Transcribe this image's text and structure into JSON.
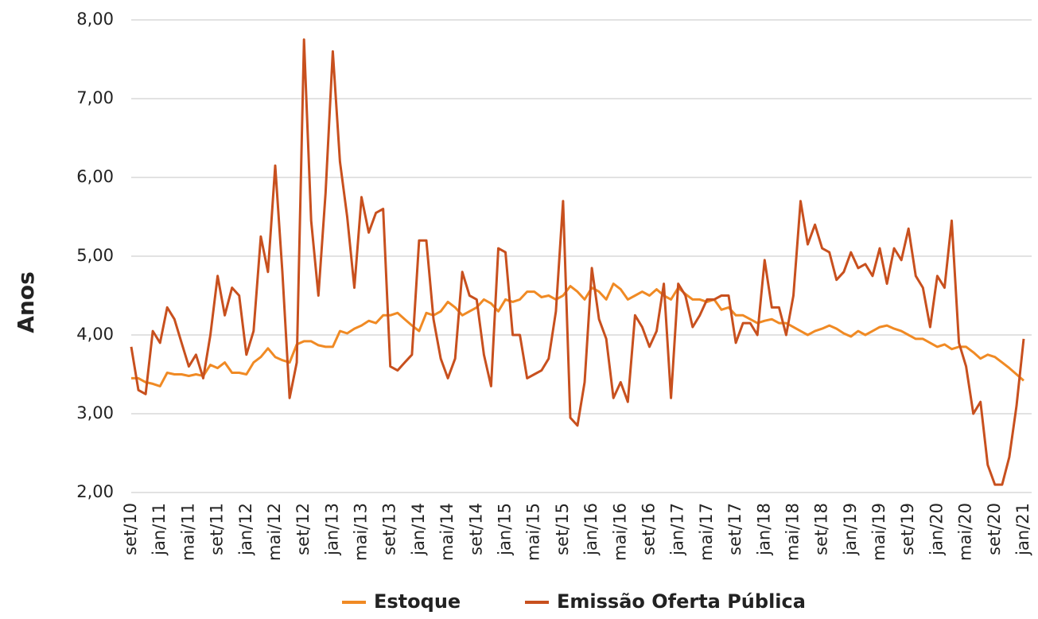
{
  "chart_data": {
    "type": "line",
    "y_label": "Anos",
    "categories": [
      "set/10",
      null,
      null,
      null,
      "jan/11",
      null,
      null,
      null,
      "mai/11",
      null,
      null,
      null,
      "set/11",
      null,
      null,
      null,
      "jan/12",
      null,
      null,
      null,
      "mai/12",
      null,
      null,
      null,
      "set/12",
      null,
      null,
      null,
      "jan/13",
      null,
      null,
      null,
      "mai/13",
      null,
      null,
      null,
      "set/13",
      null,
      null,
      null,
      "jan/14",
      null,
      null,
      null,
      "mai/14",
      null,
      null,
      null,
      "set/14",
      null,
      null,
      null,
      "jan/15",
      null,
      null,
      null,
      "mai/15",
      null,
      null,
      null,
      "set/15",
      null,
      null,
      null,
      "jan/16",
      null,
      null,
      null,
      "mai/16",
      null,
      null,
      null,
      "set/16",
      null,
      null,
      null,
      "jan/17",
      null,
      null,
      null,
      "mai/17",
      null,
      null,
      null,
      "set/17",
      null,
      null,
      null,
      "jan/18",
      null,
      null,
      null,
      "mai/18",
      null,
      null,
      null,
      "set/18",
      null,
      null,
      null,
      "jan/19",
      null,
      null,
      null,
      "mai/19",
      null,
      null,
      null,
      "set/19",
      null,
      null,
      null,
      "jan/20",
      null,
      null,
      null,
      "mai/20",
      null,
      null,
      null,
      "set/20",
      null,
      null,
      null,
      "jan/21"
    ],
    "series": [
      {
        "name": "Estoque",
        "color": "#f08a24",
        "values": [
          3.45,
          3.45,
          3.4,
          3.38,
          3.35,
          3.52,
          3.5,
          3.5,
          3.48,
          3.5,
          3.48,
          3.62,
          3.58,
          3.65,
          3.52,
          3.52,
          3.5,
          3.65,
          3.72,
          3.83,
          3.72,
          3.68,
          3.65,
          3.88,
          3.92,
          3.92,
          3.87,
          3.85,
          3.85,
          4.05,
          4.02,
          4.08,
          4.12,
          4.18,
          4.15,
          4.25,
          4.25,
          4.28,
          4.2,
          4.12,
          4.05,
          4.28,
          4.25,
          4.3,
          4.42,
          4.35,
          4.25,
          4.3,
          4.35,
          4.45,
          4.4,
          4.3,
          4.45,
          4.42,
          4.45,
          4.55,
          4.55,
          4.48,
          4.5,
          4.45,
          4.5,
          4.62,
          4.55,
          4.45,
          4.6,
          4.55,
          4.45,
          4.65,
          4.58,
          4.45,
          4.5,
          4.55,
          4.5,
          4.58,
          4.5,
          4.45,
          4.6,
          4.52,
          4.45,
          4.45,
          4.42,
          4.45,
          4.32,
          4.35,
          4.25,
          4.25,
          4.2,
          4.15,
          4.18,
          4.2,
          4.15,
          4.15,
          4.1,
          4.05,
          4.0,
          4.05,
          4.08,
          4.12,
          4.08,
          4.02,
          3.98,
          4.05,
          4.0,
          4.05,
          4.1,
          4.12,
          4.08,
          4.05,
          4.0,
          3.95,
          3.95,
          3.9,
          3.85,
          3.88,
          3.82,
          3.85,
          3.85,
          3.78,
          3.7,
          3.75,
          3.72,
          3.65,
          3.58,
          3.5,
          3.42
        ]
      },
      {
        "name": "Emissão Oferta Pública",
        "color": "#c8501e",
        "values": [
          3.85,
          3.3,
          3.25,
          4.05,
          3.9,
          4.35,
          4.2,
          3.9,
          3.6,
          3.75,
          3.45,
          4.0,
          4.75,
          4.25,
          4.6,
          4.5,
          3.75,
          4.05,
          5.25,
          4.8,
          6.15,
          4.8,
          3.2,
          3.65,
          7.75,
          5.45,
          4.5,
          5.8,
          7.6,
          6.2,
          5.5,
          4.6,
          5.75,
          5.3,
          5.55,
          5.6,
          3.6,
          3.55,
          3.65,
          3.75,
          5.2,
          5.2,
          4.2,
          3.7,
          3.45,
          3.7,
          4.8,
          4.5,
          4.45,
          3.75,
          3.35,
          5.1,
          5.05,
          4.0,
          4.0,
          3.45,
          3.5,
          3.55,
          3.7,
          4.3,
          5.7,
          2.95,
          2.85,
          3.4,
          4.85,
          4.2,
          3.95,
          3.2,
          3.4,
          3.15,
          4.25,
          4.1,
          3.85,
          4.05,
          4.65,
          3.2,
          4.65,
          4.5,
          4.1,
          4.25,
          4.45,
          4.45,
          4.5,
          4.5,
          3.9,
          4.15,
          4.15,
          4.0,
          4.95,
          4.35,
          4.35,
          4.0,
          4.5,
          5.7,
          5.15,
          5.4,
          5.1,
          5.05,
          4.7,
          4.8,
          5.05,
          4.85,
          4.9,
          4.75,
          5.1,
          4.65,
          5.1,
          4.95,
          5.35,
          4.75,
          4.6,
          4.1,
          4.75,
          4.6,
          5.45,
          3.9,
          3.6,
          3.0,
          3.15,
          2.35,
          2.1,
          2.1,
          2.45,
          3.1,
          3.95
        ]
      }
    ],
    "ylim": [
      2,
      8
    ],
    "yticks": [
      {
        "value": 2,
        "label": "2,00"
      },
      {
        "value": 3,
        "label": "3,00"
      },
      {
        "value": 4,
        "label": "4,00"
      },
      {
        "value": 5,
        "label": "5,00"
      },
      {
        "value": 6,
        "label": "6,00"
      },
      {
        "value": 7,
        "label": "7,00"
      },
      {
        "value": 8,
        "label": "8,00"
      }
    ],
    "grid": true
  }
}
